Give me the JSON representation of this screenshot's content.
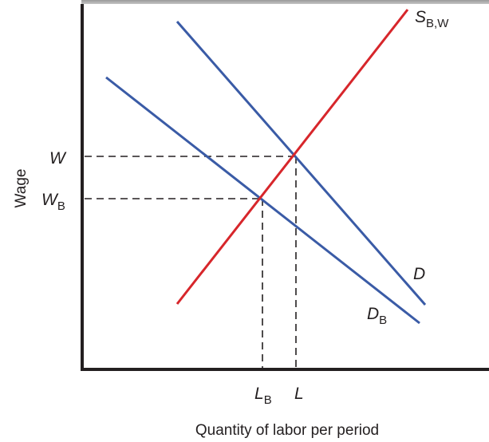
{
  "axes": {
    "y_label": "Wage",
    "x_label": "Quantity of labor per period"
  },
  "y_ticks": [
    {
      "main": "W"
    },
    {
      "main": "W",
      "sub": "B"
    }
  ],
  "x_ticks": [
    {
      "main": "L",
      "sub": "B"
    },
    {
      "main": "L"
    }
  ],
  "curves": [
    {
      "main": "S",
      "sub": "B,W"
    },
    {
      "main": "D"
    },
    {
      "main": "D",
      "sub": "B"
    }
  ]
}
